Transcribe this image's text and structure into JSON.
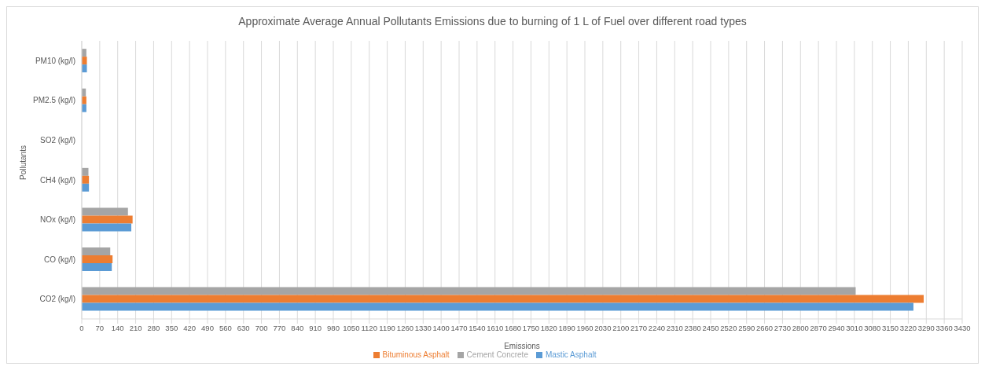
{
  "chart_data": {
    "type": "bar",
    "orientation": "horizontal",
    "title": "Approximate Average Annual Pollutants Emissions due to burning of 1 L of Fuel over different road types",
    "xlabel": "Emissions",
    "ylabel": "Pollutants",
    "categories": [
      "PM10 (kg/l)",
      "PM2.5 (kg/l)",
      "SO2 (kg/l)",
      "CH4 (kg/l)",
      "NOx (kg/l)",
      "CO (kg/l)",
      "CO2 (kg/l)"
    ],
    "series": [
      {
        "name": "Cement Concrete",
        "color": "#a5a5a5",
        "values": [
          18,
          16,
          0,
          26,
          180,
          111,
          3015
        ]
      },
      {
        "name": "Bituminous Asphalt",
        "color": "#ed7d31",
        "values": [
          20,
          18,
          0,
          28,
          198,
          120,
          3280
        ]
      },
      {
        "name": "Mastic Asphalt",
        "color": "#5b9bd5",
        "values": [
          20,
          18,
          0,
          28,
          193,
          117,
          3240
        ]
      }
    ],
    "xlim": [
      0,
      3430
    ],
    "xticks": [
      0,
      70,
      140,
      210,
      280,
      350,
      420,
      490,
      560,
      630,
      700,
      770,
      840,
      910,
      980,
      1050,
      1120,
      1190,
      1260,
      1330,
      1400,
      1470,
      1540,
      1610,
      1680,
      1750,
      1820,
      1890,
      1960,
      2030,
      2100,
      2170,
      2240,
      2310,
      2380,
      2450,
      2520,
      2590,
      2660,
      2730,
      2800,
      2870,
      2940,
      3010,
      3080,
      3150,
      3220,
      3290,
      3360,
      3430
    ],
    "grid": "x",
    "legend": "bottom"
  }
}
